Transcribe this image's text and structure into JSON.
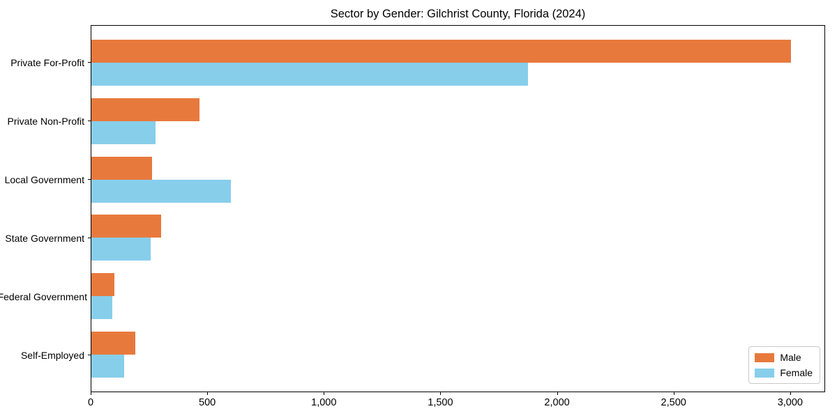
{
  "chart_data": {
    "type": "bar",
    "orientation": "horizontal",
    "title": "Sector by Gender: Gilchrist County, Florida (2024)",
    "categories": [
      "Private For-Profit",
      "Private Non-Profit",
      "Local Government",
      "State Government",
      "Federal Government",
      "Self-Employed"
    ],
    "series": [
      {
        "name": "Male",
        "color": "#e8793d",
        "values": [
          3005,
          465,
          260,
          300,
          100,
          190
        ]
      },
      {
        "name": "Female",
        "color": "#87ceeb",
        "values": [
          1875,
          275,
          600,
          255,
          90,
          140
        ]
      }
    ],
    "xlabel": "",
    "ylabel": "",
    "xlim": [
      0,
      3150
    ],
    "x_ticks": [
      0,
      500,
      1000,
      1500,
      2000,
      2500,
      3000
    ],
    "x_tick_labels": [
      "0",
      "500",
      "1,000",
      "1,500",
      "2,000",
      "2,500",
      "3,000"
    ],
    "grid": false,
    "legend_position": "lower right",
    "colors": {
      "axis": "#000000",
      "background": "#ffffff",
      "legend_border": "#c9c9c9"
    }
  }
}
